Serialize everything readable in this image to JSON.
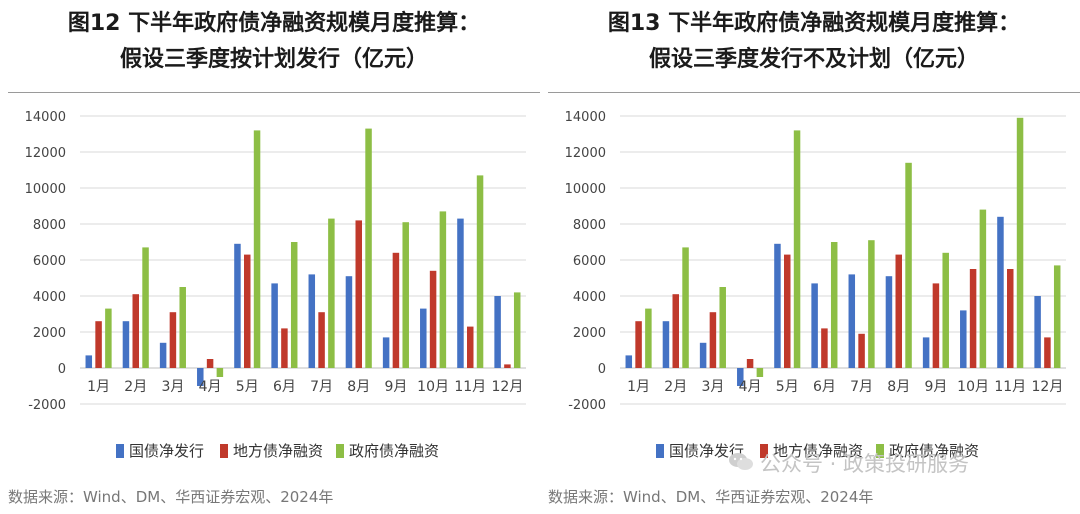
{
  "colors": {
    "series1": "#4472C4",
    "series2": "#C0392B",
    "series3": "#8DBE45",
    "axis_text": "#444444",
    "gridline": "#d9d9d9"
  },
  "panels": [
    {
      "title_line1": "图12 下半年政府债净融资规模月度推算：",
      "title_line2": "假设三季度按计划发行（亿元）",
      "source": "数据来源：Wind、DM、华西证券宏观、2024年"
    },
    {
      "title_line1": "图13 下半年政府债净融资规模月度推算：",
      "title_line2": "假设三季度发行不及计划（亿元）",
      "source": "数据来源：Wind、DM、华西证券宏观、2024年"
    }
  ],
  "watermark": {
    "text": "公众号 · 政策投研服务",
    "icon": "wechat-icon"
  },
  "chart_data": [
    {
      "type": "bar",
      "title": "图12 下半年政府债净融资规模月度推算：假设三季度按计划发行（亿元）",
      "categories": [
        "1月",
        "2月",
        "3月",
        "4月",
        "5月",
        "6月",
        "7月",
        "8月",
        "9月",
        "10月",
        "11月",
        "12月"
      ],
      "ylim": [
        -2000,
        14000
      ],
      "yticks": [
        -2000,
        0,
        2000,
        4000,
        6000,
        8000,
        10000,
        12000,
        14000
      ],
      "grid": true,
      "legend": "bottom",
      "series": [
        {
          "name": "国债净发行",
          "values": [
            700,
            2600,
            1400,
            -1000,
            6900,
            4700,
            5200,
            5100,
            1700,
            3300,
            8300,
            4000
          ]
        },
        {
          "name": "地方债净融资",
          "values": [
            2600,
            4100,
            3100,
            500,
            6300,
            2200,
            3100,
            8200,
            6400,
            5400,
            2300,
            200
          ]
        },
        {
          "name": "政府债净融资",
          "values": [
            3300,
            6700,
            4500,
            -500,
            13200,
            7000,
            8300,
            13300,
            8100,
            8700,
            10700,
            4200
          ]
        }
      ]
    },
    {
      "type": "bar",
      "title": "图13 下半年政府债净融资规模月度推算：假设三季度发行不及计划（亿元）",
      "categories": [
        "1月",
        "2月",
        "3月",
        "4月",
        "5月",
        "6月",
        "7月",
        "8月",
        "9月",
        "10月",
        "11月",
        "12月"
      ],
      "ylim": [
        -2000,
        14000
      ],
      "yticks": [
        -2000,
        0,
        2000,
        4000,
        6000,
        8000,
        10000,
        12000,
        14000
      ],
      "grid": true,
      "legend": "bottom",
      "series": [
        {
          "name": "国债净发行",
          "values": [
            700,
            2600,
            1400,
            -1000,
            6900,
            4700,
            5200,
            5100,
            1700,
            3200,
            8400,
            4000
          ]
        },
        {
          "name": "地方债净融资",
          "values": [
            2600,
            4100,
            3100,
            500,
            6300,
            2200,
            1900,
            6300,
            4700,
            5500,
            5500,
            1700
          ]
        },
        {
          "name": "政府债净融资",
          "values": [
            3300,
            6700,
            4500,
            -500,
            13200,
            7000,
            7100,
            11400,
            6400,
            8800,
            13900,
            5700
          ]
        }
      ]
    }
  ]
}
